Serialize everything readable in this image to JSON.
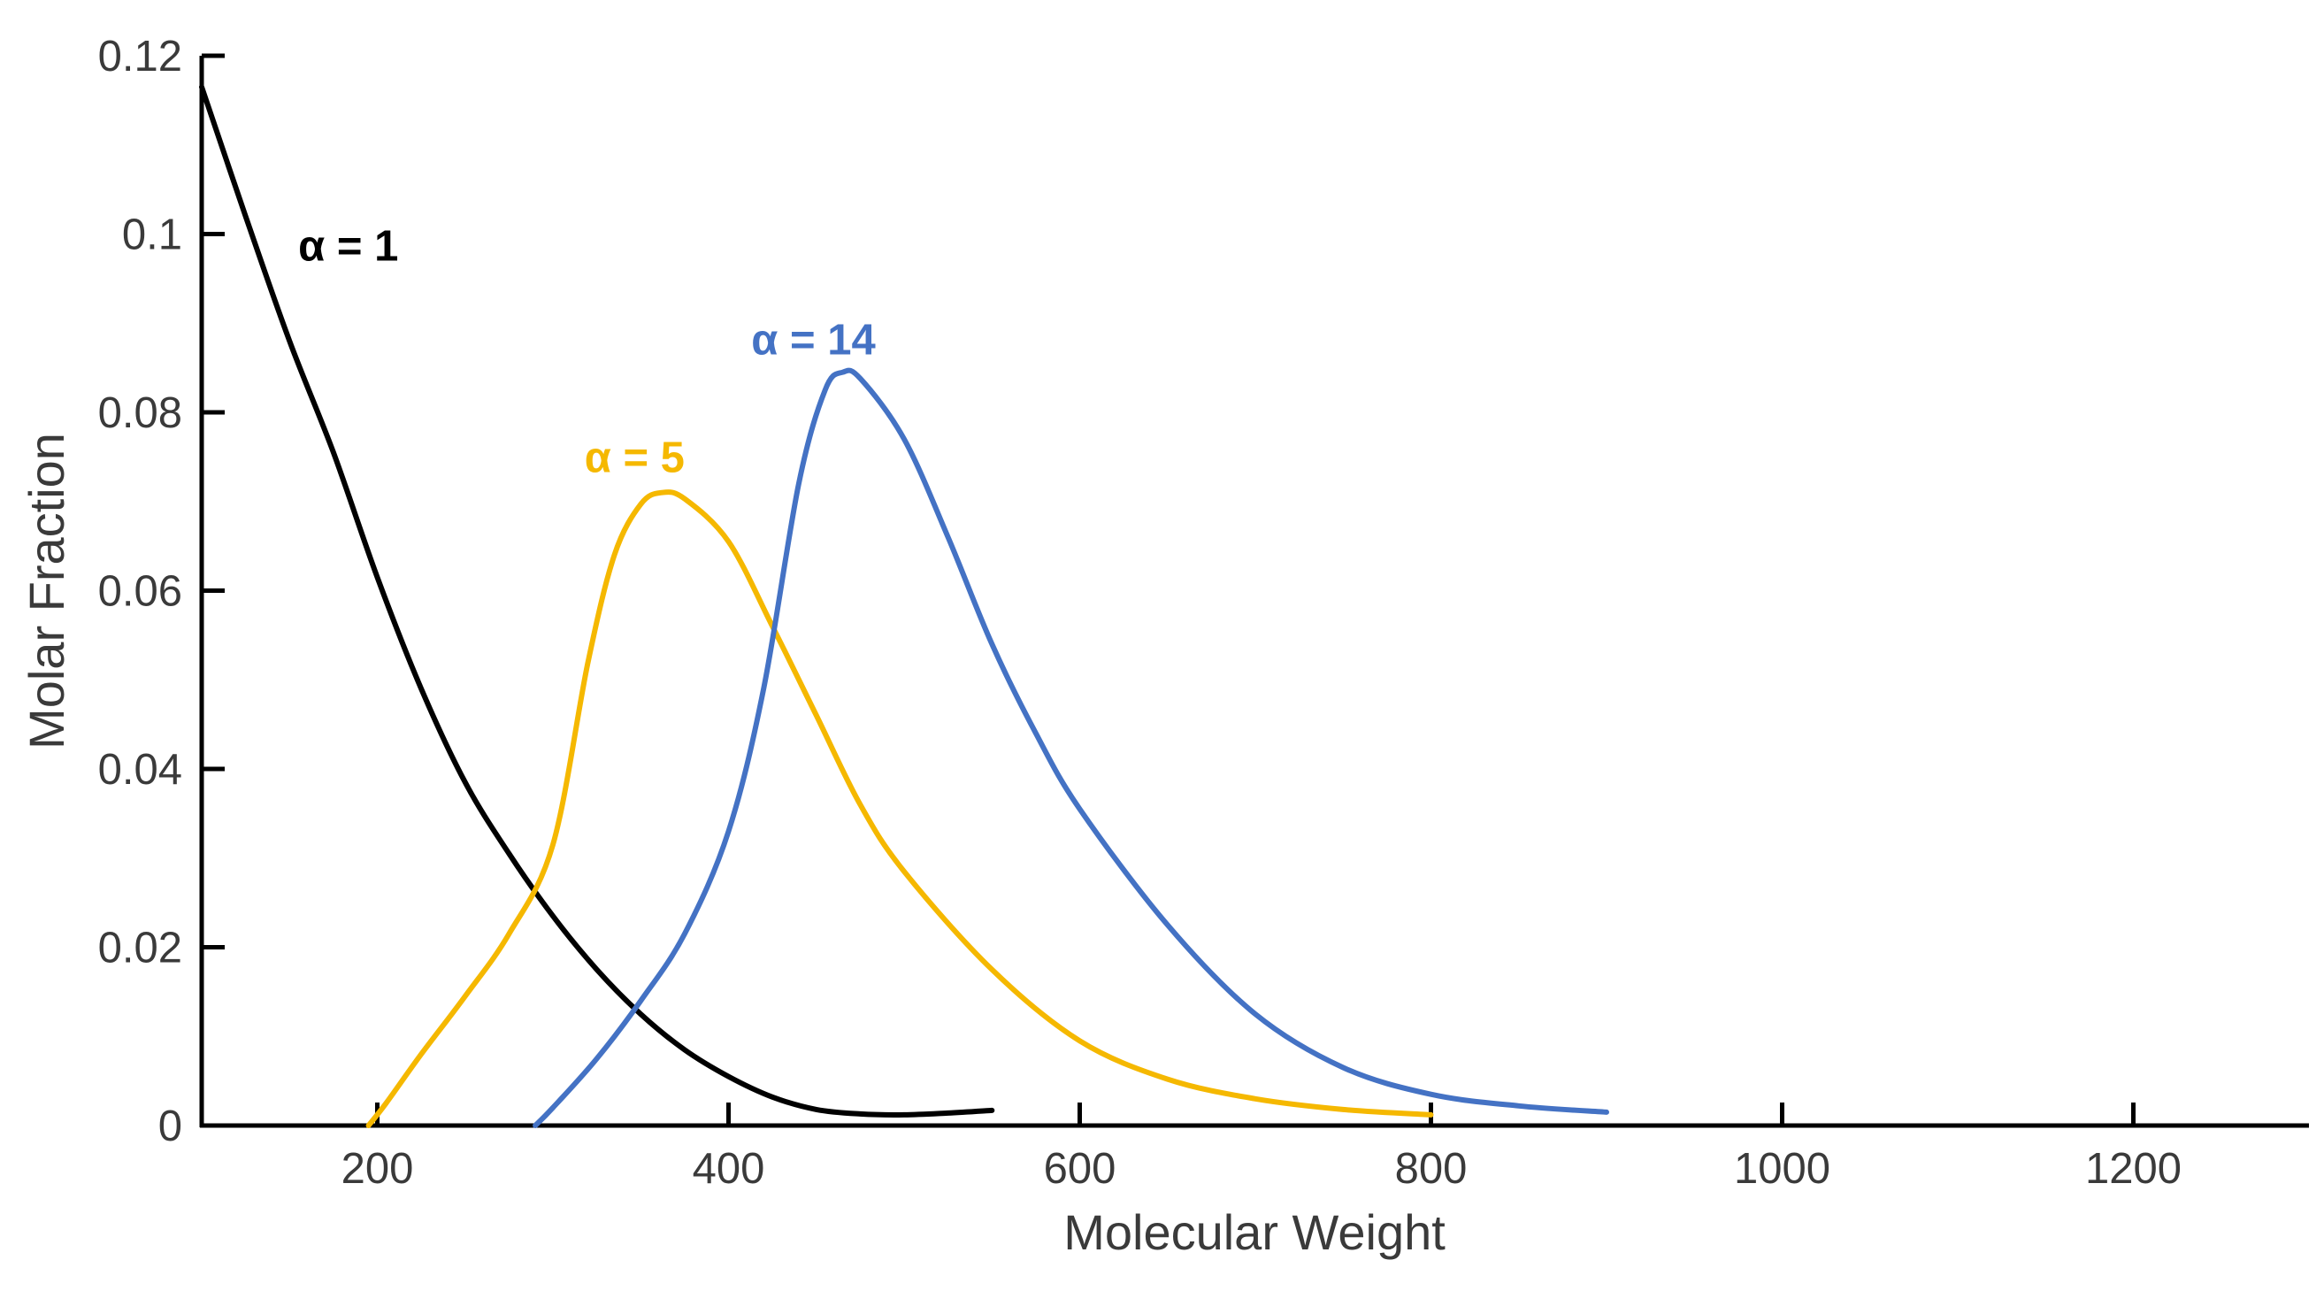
{
  "chart_data": {
    "type": "line",
    "title": "",
    "xlabel": "Molecular Weight",
    "ylabel": "Molar Fraction",
    "xlim": [
      100,
      1300
    ],
    "ylim": [
      0,
      0.12
    ],
    "grid": false,
    "legend": "none",
    "x_ticks": [
      {
        "value": 200,
        "label": "200"
      },
      {
        "value": 400,
        "label": "400"
      },
      {
        "value": 600,
        "label": "600"
      },
      {
        "value": 800,
        "label": "800"
      },
      {
        "value": 1000,
        "label": "1000"
      },
      {
        "value": 1200,
        "label": "1200"
      }
    ],
    "y_ticks": [
      {
        "value": 0,
        "label": "0"
      },
      {
        "value": 0.02,
        "label": "0.02"
      },
      {
        "value": 0.04,
        "label": "0.04"
      },
      {
        "value": 0.06,
        "label": "0.06"
      },
      {
        "value": 0.08,
        "label": "0.08"
      },
      {
        "value": 0.1,
        "label": "0.1"
      },
      {
        "value": 0.12,
        "label": "0.12"
      }
    ],
    "series": [
      {
        "name": "α = 1",
        "label": "α = 1",
        "color": "#000000",
        "label_at": {
          "x": 155,
          "y": 0.097
        },
        "x": [
          100,
          125,
          150,
          175,
          200,
          225,
          250,
          275,
          300,
          325,
          350,
          375,
          400,
          425,
          450,
          475,
          500,
          525,
          550
        ],
        "y": [
          0.1165,
          0.102,
          0.088,
          0.0755,
          0.0615,
          0.049,
          0.0385,
          0.0305,
          0.0235,
          0.0175,
          0.0125,
          0.0085,
          0.0055,
          0.0032,
          0.0018,
          0.0013,
          0.0012,
          0.0014,
          0.0017
        ]
      },
      {
        "name": "α = 5",
        "label": "α = 5",
        "color": "#F5B800",
        "label_at": {
          "x": 318,
          "y": 0.0733
        },
        "x": [
          195,
          205,
          225,
          250,
          275,
          300,
          320,
          335,
          350,
          362,
          375,
          400,
          425,
          450,
          475,
          500,
          550,
          600,
          650,
          700,
          750,
          800
        ],
        "y": [
          0,
          0.0025,
          0.008,
          0.0145,
          0.0215,
          0.0315,
          0.052,
          0.064,
          0.0697,
          0.071,
          0.0703,
          0.0655,
          0.056,
          0.046,
          0.036,
          0.0285,
          0.0175,
          0.0095,
          0.0052,
          0.003,
          0.0018,
          0.0012
        ]
      },
      {
        "name": "α = 14",
        "label": "α = 14",
        "color": "#4472C4",
        "label_at": {
          "x": 413,
          "y": 0.0865
        },
        "x": [
          290,
          300,
          325,
          350,
          375,
          400,
          420,
          440,
          455,
          465,
          475,
          500,
          525,
          550,
          575,
          600,
          650,
          700,
          750,
          800,
          850,
          900
        ],
        "y": [
          0,
          0.002,
          0.0075,
          0.014,
          0.0215,
          0.033,
          0.049,
          0.072,
          0.0825,
          0.0845,
          0.0838,
          0.077,
          0.066,
          0.054,
          0.044,
          0.0355,
          0.0225,
          0.0125,
          0.0065,
          0.0035,
          0.0022,
          0.0015
        ]
      }
    ]
  }
}
